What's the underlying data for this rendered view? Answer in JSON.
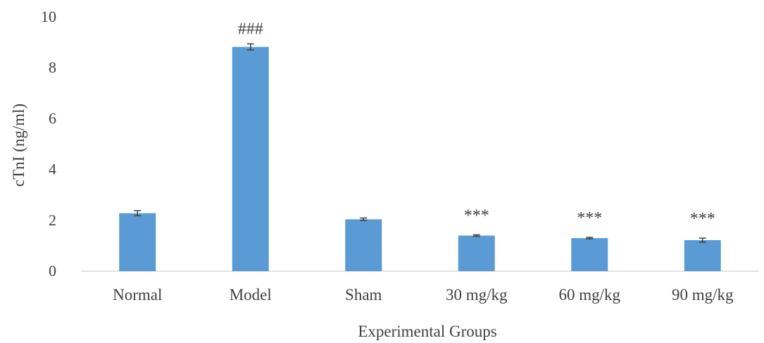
{
  "chart_data": {
    "type": "bar",
    "title": "",
    "xlabel": "Experimental Groups",
    "ylabel": "cTnI (ng/ml)",
    "ylim": [
      0,
      10
    ],
    "yticks": [
      "0",
      "2",
      "4",
      "6",
      "8",
      "10"
    ],
    "grid": false,
    "legend": "none",
    "bar_color": "#5b9bd5",
    "error_bar_color": "#404040",
    "categories": [
      "Normal",
      "Model",
      "Sham",
      "30 mg/kg",
      "60 mg/kg",
      "90 mg/kg"
    ],
    "values": [
      2.28,
      8.82,
      2.04,
      1.4,
      1.3,
      1.22
    ],
    "errors": [
      0.1,
      0.12,
      0.05,
      0.03,
      0.03,
      0.08
    ],
    "annotations": [
      "",
      "###",
      "",
      "***",
      "***",
      "***"
    ]
  }
}
